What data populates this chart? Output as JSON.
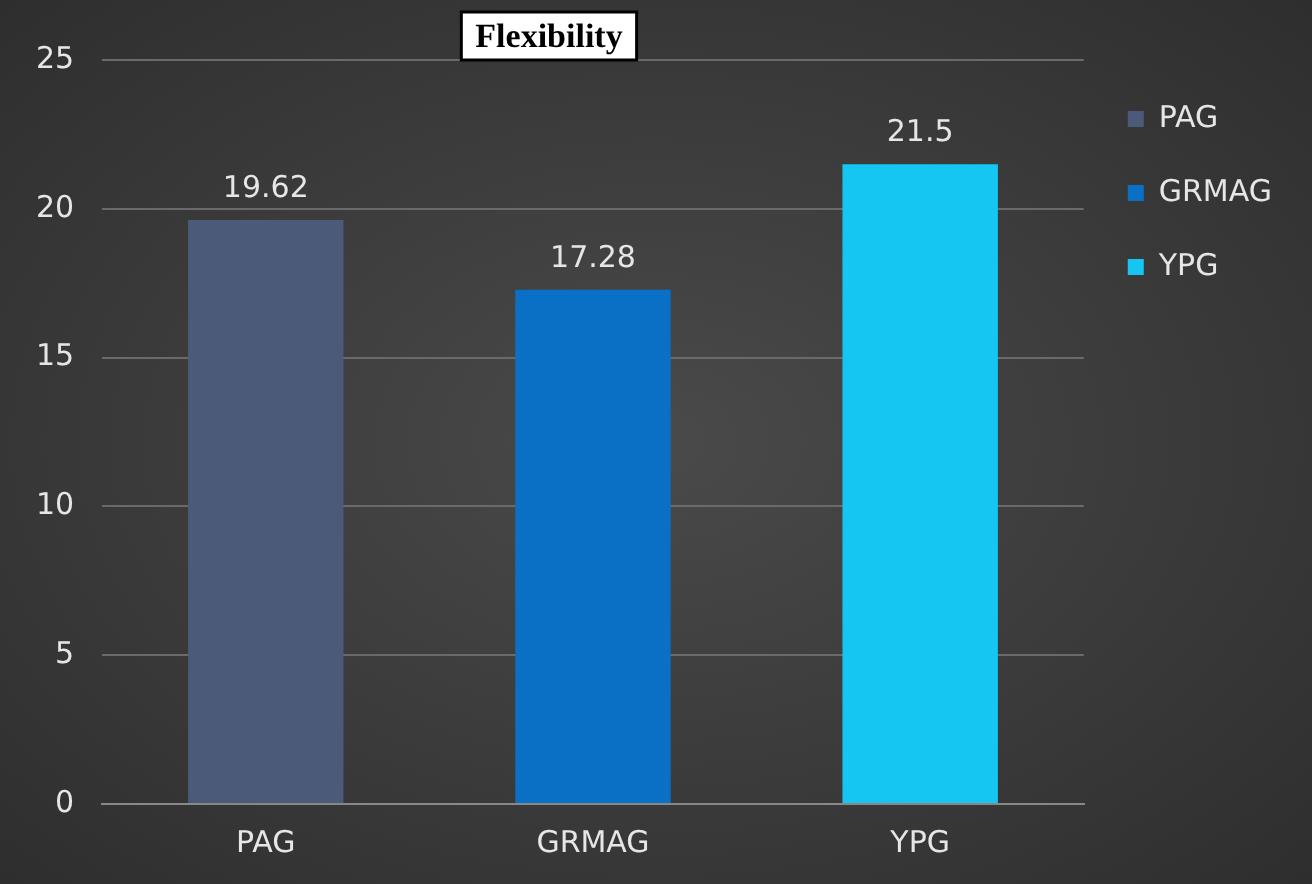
{
  "chart_data": {
    "type": "bar",
    "title": "Flexibility",
    "categories": [
      "PAG",
      "GRMAG",
      "YPG"
    ],
    "series": [
      {
        "name": "PAG",
        "color": "#4a5a78",
        "values": [
          19.62,
          null,
          null
        ]
      },
      {
        "name": "GRMAG",
        "color": "#0a70c6",
        "values": [
          null,
          17.28,
          null
        ]
      },
      {
        "name": "YPG",
        "color": "#16c6f2",
        "values": [
          null,
          null,
          21.5
        ]
      }
    ],
    "ylim": [
      0,
      25
    ],
    "yticks": [
      0,
      5,
      10,
      15,
      20,
      25
    ],
    "grid": "y",
    "legend": "right",
    "data_labels": true
  }
}
